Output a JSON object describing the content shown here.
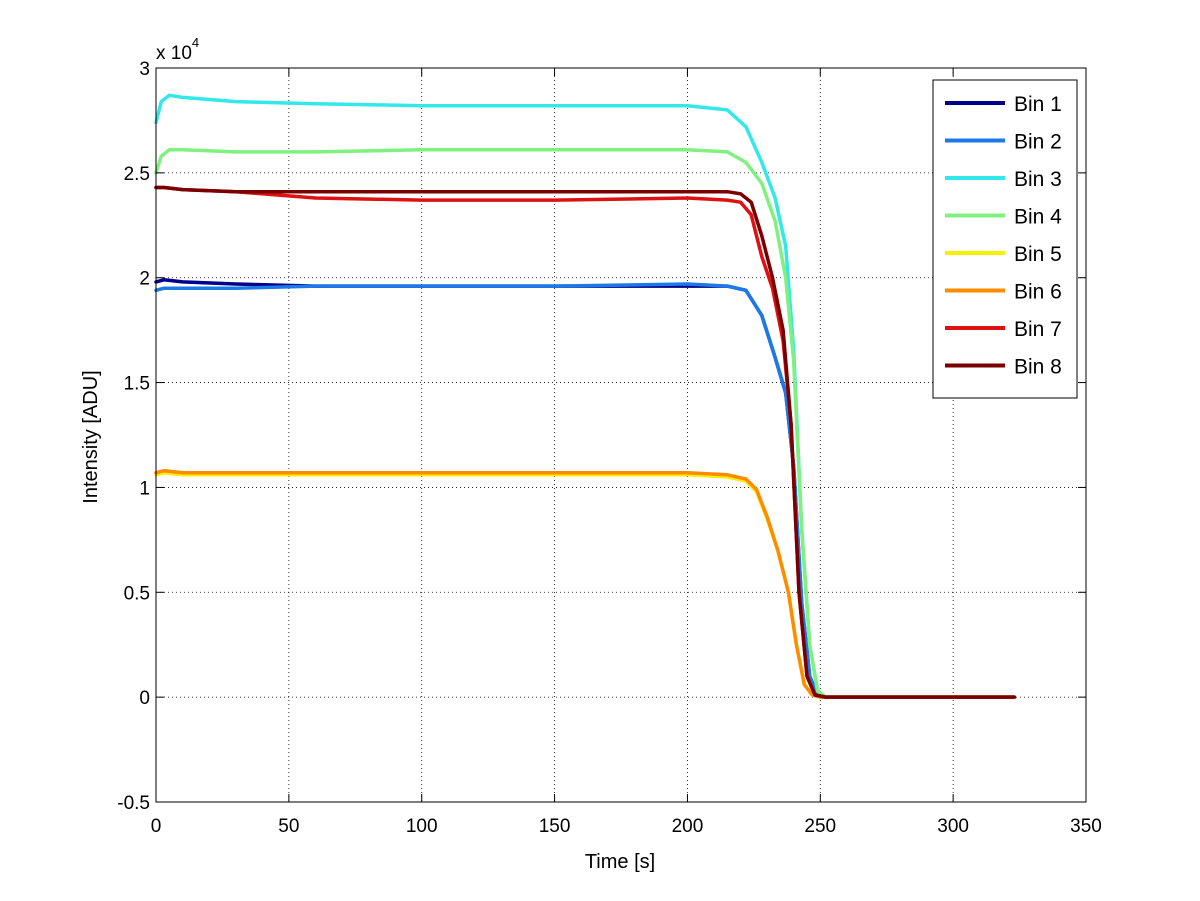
{
  "chart_data": {
    "type": "line",
    "title": "",
    "xlabel": "Time [s]",
    "ylabel": "Intensity [ADU]",
    "xlim": [
      0,
      350
    ],
    "ylim": [
      -0.5,
      3
    ],
    "y_scale_label": "x 10",
    "y_scale_exponent": "4",
    "grid": true,
    "legend_position": "top-right",
    "xticks": [
      0,
      50,
      100,
      150,
      200,
      250,
      300,
      350
    ],
    "xtick_labels": [
      "0",
      "50",
      "100",
      "150",
      "200",
      "250",
      "300",
      "350"
    ],
    "yticks": [
      -0.5,
      0,
      0.5,
      1,
      1.5,
      2,
      2.5,
      3
    ],
    "ytick_labels": [
      "-0.5",
      "0",
      "0.5",
      "1",
      "1.5",
      "2",
      "2.5",
      "3"
    ],
    "series": [
      {
        "name": "Bin 1",
        "color": "#00008b",
        "x": [
          0,
          3,
          10,
          30,
          60,
          100,
          150,
          200,
          215,
          222,
          228,
          233,
          237,
          240,
          243,
          246,
          249,
          252,
          270,
          300,
          323
        ],
        "y": [
          1.98,
          1.99,
          1.98,
          1.97,
          1.96,
          1.96,
          1.96,
          1.96,
          1.96,
          1.94,
          1.82,
          1.62,
          1.45,
          1.1,
          0.45,
          0.1,
          0.01,
          0.0,
          0.0,
          0.0,
          0.0
        ]
      },
      {
        "name": "Bin 2",
        "color": "#1c7ae8",
        "x": [
          0,
          3,
          10,
          30,
          60,
          100,
          150,
          200,
          215,
          222,
          228,
          233,
          237,
          240,
          243,
          246,
          249,
          252,
          270,
          300,
          323
        ],
        "y": [
          1.94,
          1.95,
          1.95,
          1.95,
          1.96,
          1.96,
          1.96,
          1.97,
          1.96,
          1.94,
          1.82,
          1.62,
          1.45,
          1.1,
          0.45,
          0.1,
          0.01,
          0.0,
          0.0,
          0.0,
          0.0
        ]
      },
      {
        "name": "Bin 3",
        "color": "#33e8e8",
        "x": [
          0,
          2,
          5,
          10,
          30,
          60,
          100,
          150,
          200,
          215,
          222,
          228,
          233,
          237,
          240,
          243,
          246,
          249,
          252,
          270,
          300,
          323
        ],
        "y": [
          2.74,
          2.84,
          2.87,
          2.86,
          2.84,
          2.83,
          2.82,
          2.82,
          2.82,
          2.8,
          2.72,
          2.55,
          2.38,
          2.15,
          1.65,
          0.8,
          0.25,
          0.03,
          0.0,
          0.0,
          0.0,
          0.0
        ]
      },
      {
        "name": "Bin 4",
        "color": "#80f080",
        "x": [
          0,
          2,
          5,
          10,
          30,
          60,
          100,
          150,
          200,
          215,
          222,
          228,
          233,
          237,
          240,
          243,
          246,
          249,
          252,
          270,
          300,
          323
        ],
        "y": [
          2.5,
          2.58,
          2.61,
          2.61,
          2.6,
          2.6,
          2.61,
          2.61,
          2.61,
          2.6,
          2.55,
          2.45,
          2.27,
          2.0,
          1.6,
          0.8,
          0.25,
          0.03,
          0.0,
          0.0,
          0.0,
          0.0
        ]
      },
      {
        "name": "Bin 5",
        "color": "#f8f000",
        "x": [
          0,
          3,
          10,
          30,
          60,
          100,
          150,
          200,
          215,
          222,
          226,
          230,
          234,
          238,
          241,
          244,
          247,
          250,
          270,
          300,
          323
        ],
        "y": [
          1.06,
          1.07,
          1.06,
          1.06,
          1.06,
          1.06,
          1.06,
          1.06,
          1.05,
          1.03,
          0.98,
          0.85,
          0.7,
          0.5,
          0.25,
          0.06,
          0.01,
          0.0,
          0.0,
          0.0,
          0.0
        ]
      },
      {
        "name": "Bin 6",
        "color": "#ff8c00",
        "x": [
          0,
          3,
          10,
          30,
          60,
          100,
          150,
          200,
          215,
          222,
          226,
          230,
          234,
          238,
          241,
          244,
          247,
          250,
          270,
          300,
          323
        ],
        "y": [
          1.07,
          1.08,
          1.07,
          1.07,
          1.07,
          1.07,
          1.07,
          1.07,
          1.06,
          1.04,
          0.99,
          0.86,
          0.7,
          0.5,
          0.25,
          0.06,
          0.01,
          0.0,
          0.0,
          0.0,
          0.0
        ]
      },
      {
        "name": "Bin 7",
        "color": "#dd1111",
        "x": [
          0,
          3,
          10,
          30,
          60,
          100,
          150,
          200,
          215,
          220,
          224,
          228,
          232,
          236,
          239,
          242,
          245,
          248,
          252,
          270,
          300,
          323
        ],
        "y": [
          2.43,
          2.43,
          2.42,
          2.41,
          2.38,
          2.37,
          2.37,
          2.38,
          2.37,
          2.36,
          2.3,
          2.1,
          1.95,
          1.7,
          1.3,
          0.5,
          0.1,
          0.01,
          0.0,
          0.0,
          0.0,
          0.0
        ]
      },
      {
        "name": "Bin 8",
        "color": "#7a0000",
        "x": [
          0,
          3,
          10,
          30,
          60,
          100,
          150,
          200,
          215,
          220,
          224,
          228,
          232,
          236,
          239,
          242,
          245,
          248,
          252,
          270,
          300,
          323
        ],
        "y": [
          2.43,
          2.43,
          2.42,
          2.41,
          2.41,
          2.41,
          2.41,
          2.41,
          2.41,
          2.4,
          2.36,
          2.2,
          2.0,
          1.75,
          1.3,
          0.5,
          0.1,
          0.01,
          0.0,
          0.0,
          0.0,
          0.0
        ]
      }
    ]
  }
}
